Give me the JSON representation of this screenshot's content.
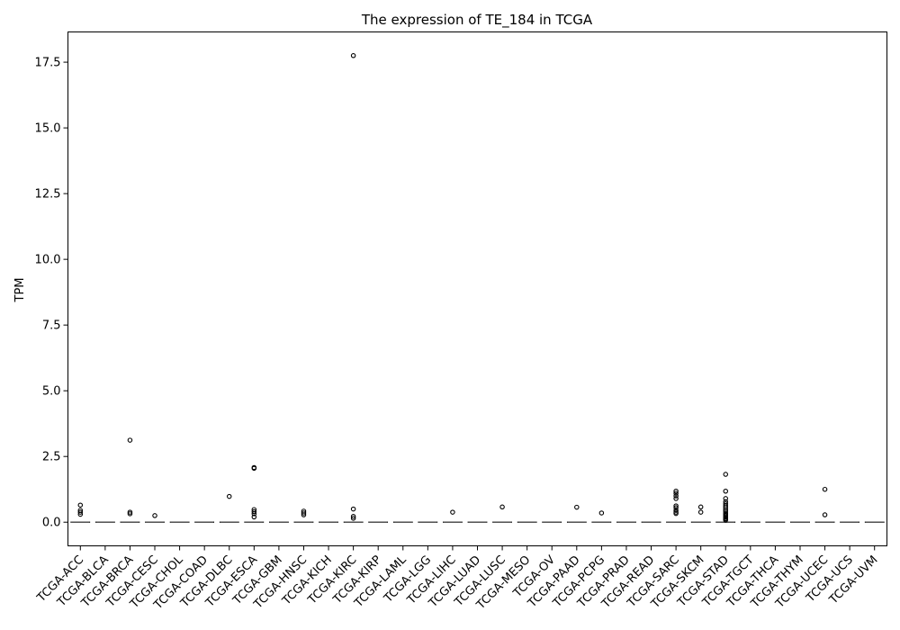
{
  "chart_data": {
    "type": "boxplot",
    "title": "The expression of TE_184 in TCGA",
    "xlabel": "",
    "ylabel": "TPM",
    "ylim": [
      -0.9,
      18.65
    ],
    "yticks": [
      0.0,
      2.5,
      5.0,
      7.5,
      10.0,
      12.5,
      15.0,
      17.5
    ],
    "ytick_labels": [
      "0.0",
      "2.5",
      "5.0",
      "7.5",
      "10.0",
      "12.5",
      "15.0",
      "17.5"
    ],
    "grid": false,
    "legend": "none",
    "box_color": "#000000",
    "median_color": "#555555",
    "categories": [
      "TCGA-ACC",
      "TCGA-BLCA",
      "TCGA-BRCA",
      "TCGA-CESC",
      "TCGA-CHOL",
      "TCGA-COAD",
      "TCGA-DLBC",
      "TCGA-ESCA",
      "TCGA-GBM",
      "TCGA-HNSC",
      "TCGA-KICH",
      "TCGA-KIRC",
      "TCGA-KIRP",
      "TCGA-LAML",
      "TCGA-LGG",
      "TCGA-LIHC",
      "TCGA-LUAD",
      "TCGA-LUSC",
      "TCGA-MESO",
      "TCGA-OV",
      "TCGA-PAAD",
      "TCGA-PCPG",
      "TCGA-PRAD",
      "TCGA-READ",
      "TCGA-SARC",
      "TCGA-SKCM",
      "TCGA-STAD",
      "TCGA-TGCT",
      "TCGA-THCA",
      "TCGA-THYM",
      "TCGA-UCEC",
      "TCGA-UCS",
      "TCGA-UVM"
    ],
    "median": [
      0,
      0,
      0,
      0,
      0,
      0,
      0,
      0,
      0,
      0,
      0,
      0,
      0,
      0,
      0,
      0,
      0,
      0,
      0,
      0,
      0,
      0,
      0,
      0,
      0,
      0,
      0,
      0,
      0,
      0,
      0,
      0,
      0
    ],
    "q1": [
      0,
      0,
      0,
      0,
      0,
      0,
      0,
      0,
      0,
      0,
      0,
      0,
      0,
      0,
      0,
      0,
      0,
      0,
      0,
      0,
      0,
      0,
      0,
      0,
      0,
      0,
      0,
      0,
      0,
      0,
      0,
      0,
      0
    ],
    "q3": [
      0,
      0,
      0,
      0,
      0,
      0,
      0,
      0,
      0,
      0,
      0,
      0,
      0,
      0,
      0,
      0,
      0,
      0,
      0,
      0,
      0,
      0,
      0,
      0,
      0,
      0,
      0,
      0,
      0,
      0,
      0,
      0,
      0
    ],
    "outliers": [
      [
        0.65,
        0.45,
        0.38,
        0.3
      ],
      [],
      [
        3.12,
        0.38,
        0.32
      ],
      [
        0.25
      ],
      [],
      [],
      [
        0.98
      ],
      [
        2.08,
        2.05,
        0.48,
        0.4,
        0.32,
        0.2
      ],
      [],
      [
        0.42,
        0.35,
        0.28
      ],
      [],
      [
        17.75,
        0.5,
        0.22,
        0.15
      ],
      [],
      [],
      [],
      [
        0.38
      ],
      [],
      [
        0.58
      ],
      [],
      [],
      [
        0.57
      ],
      [
        0.35
      ],
      [],
      [],
      [
        1.18,
        1.1,
        1.0,
        0.9,
        0.62,
        0.55,
        0.45,
        0.38,
        0.33
      ],
      [
        0.58,
        0.38
      ],
      [
        1.82,
        1.18,
        0.9,
        0.78,
        0.7,
        0.62,
        0.55,
        0.48,
        0.42,
        0.35,
        0.3,
        0.25,
        0.2,
        0.15,
        0.12,
        0.08
      ],
      [],
      [],
      [],
      [
        1.25,
        0.28
      ],
      [],
      []
    ]
  }
}
